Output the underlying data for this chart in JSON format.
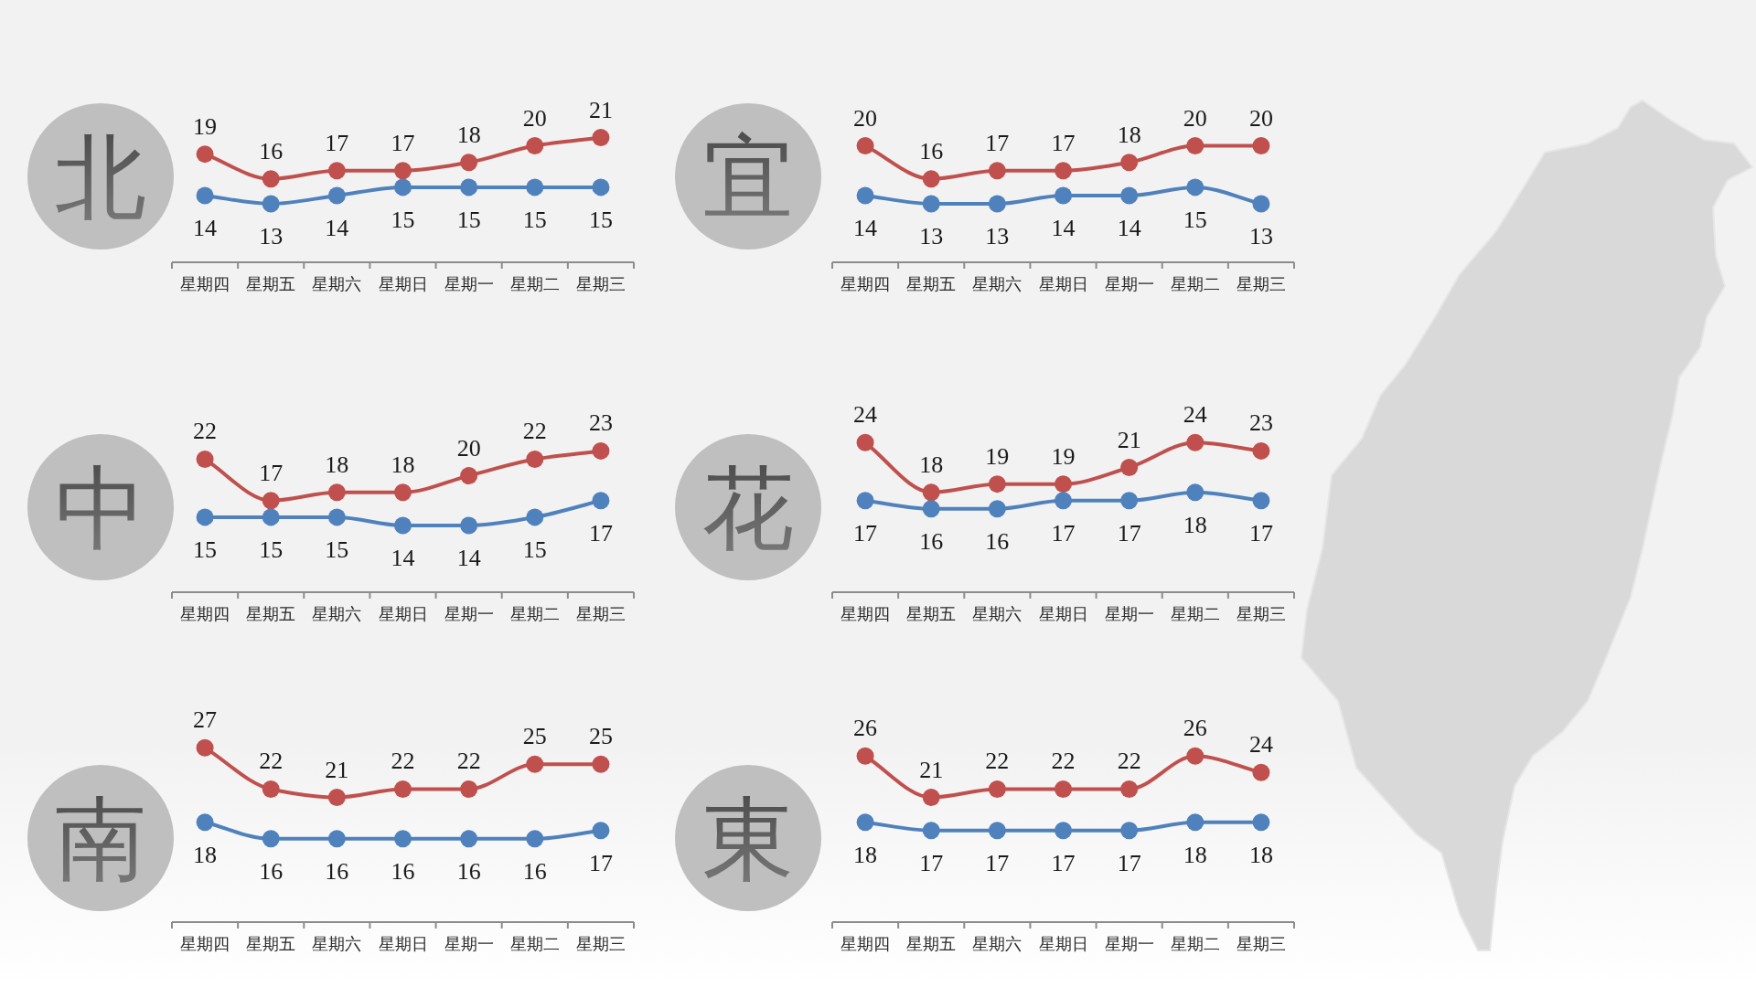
{
  "chart_data": [
    {
      "type": "line",
      "title": "北",
      "categories": [
        "星期四",
        "星期五",
        "星期六",
        "星期日",
        "星期一",
        "星期二",
        "星期三"
      ],
      "series": [
        {
          "color": "#c0504d",
          "values": [
            19,
            16,
            17,
            17,
            18,
            20,
            21
          ]
        },
        {
          "color": "#4f81bd",
          "values": [
            14,
            13,
            14,
            15,
            15,
            15,
            15
          ]
        }
      ],
      "marker": "circle",
      "line_style": "solid",
      "data_labels": true
    },
    {
      "type": "line",
      "title": "宜",
      "categories": [
        "星期四",
        "星期五",
        "星期六",
        "星期日",
        "星期一",
        "星期二",
        "星期三"
      ],
      "series": [
        {
          "color": "#c0504d",
          "values": [
            20,
            16,
            17,
            17,
            18,
            20,
            20
          ]
        },
        {
          "color": "#4f81bd",
          "values": [
            14,
            13,
            13,
            14,
            14,
            15,
            13
          ]
        }
      ],
      "marker": "circle",
      "line_style": "solid",
      "data_labels": true
    },
    {
      "type": "line",
      "title": "中",
      "categories": [
        "星期四",
        "星期五",
        "星期六",
        "星期日",
        "星期一",
        "星期二",
        "星期三"
      ],
      "series": [
        {
          "color": "#c0504d",
          "values": [
            22,
            17,
            18,
            18,
            20,
            22,
            23
          ]
        },
        {
          "color": "#4f81bd",
          "values": [
            15,
            15,
            15,
            14,
            14,
            15,
            17
          ]
        }
      ],
      "marker": "circle",
      "line_style": "solid",
      "data_labels": true
    },
    {
      "type": "line",
      "title": "花",
      "categories": [
        "星期四",
        "星期五",
        "星期六",
        "星期日",
        "星期一",
        "星期二",
        "星期三"
      ],
      "series": [
        {
          "color": "#c0504d",
          "values": [
            24,
            18,
            19,
            19,
            21,
            24,
            23
          ]
        },
        {
          "color": "#4f81bd",
          "values": [
            17,
            16,
            16,
            17,
            17,
            18,
            17
          ]
        }
      ],
      "marker": "circle",
      "line_style": "solid",
      "data_labels": true
    },
    {
      "type": "line",
      "title": "南",
      "categories": [
        "星期四",
        "星期五",
        "星期六",
        "星期日",
        "星期一",
        "星期二",
        "星期三"
      ],
      "series": [
        {
          "color": "#c0504d",
          "values": [
            27,
            22,
            21,
            22,
            22,
            25,
            25
          ]
        },
        {
          "color": "#4f81bd",
          "values": [
            18,
            16,
            16,
            16,
            16,
            16,
            17
          ]
        }
      ],
      "marker": "circle",
      "line_style": "solid",
      "data_labels": true
    },
    {
      "type": "line",
      "title": "東",
      "categories": [
        "星期四",
        "星期五",
        "星期六",
        "星期日",
        "星期一",
        "星期二",
        "星期三"
      ],
      "series": [
        {
          "color": "#c0504d",
          "values": [
            26,
            21,
            22,
            22,
            22,
            26,
            24
          ]
        },
        {
          "color": "#4f81bd",
          "values": [
            18,
            17,
            17,
            17,
            17,
            18,
            18
          ]
        }
      ],
      "marker": "circle",
      "line_style": "solid",
      "data_labels": true
    }
  ]
}
